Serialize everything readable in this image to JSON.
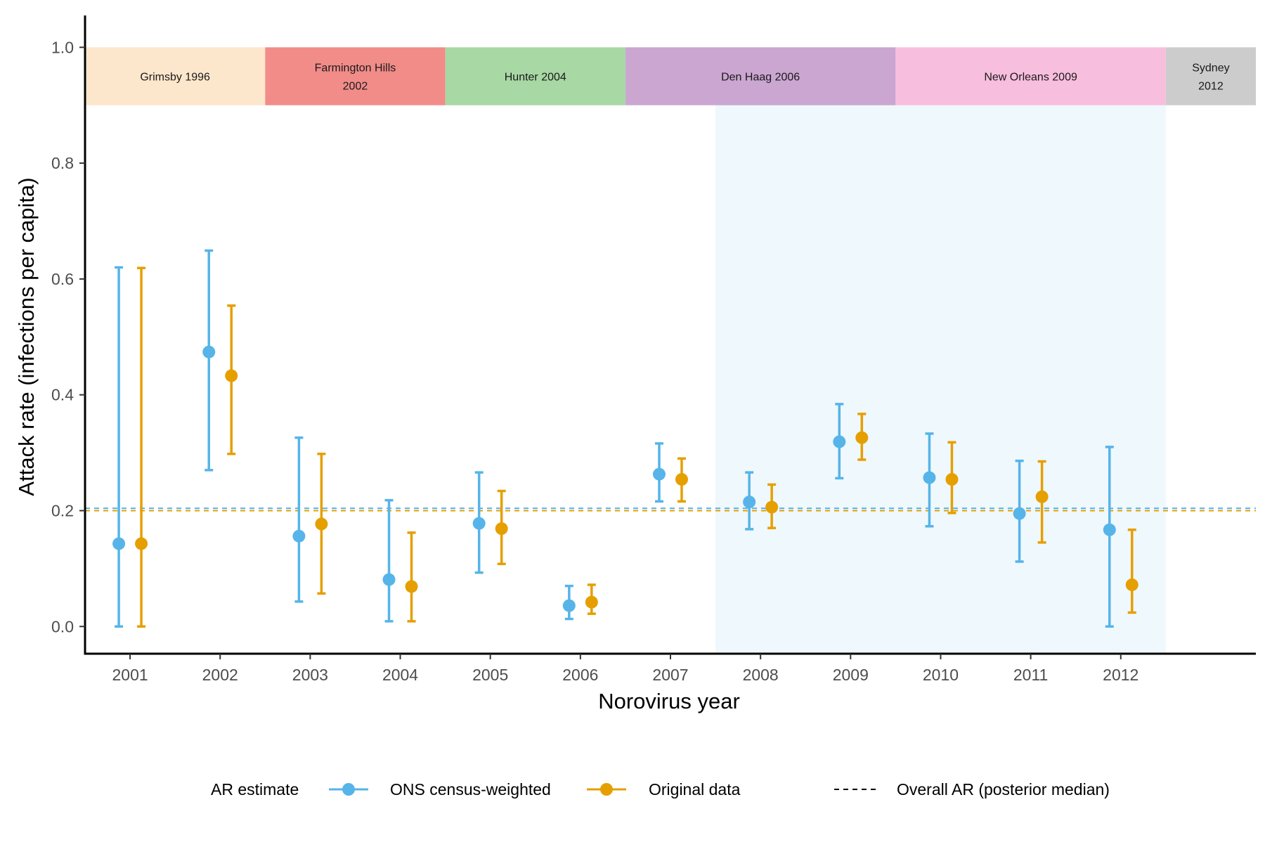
{
  "chart_data": {
    "type": "scatter",
    "xlabel": "Norovirus year",
    "ylabel": "Attack rate (infections per capita)",
    "ylim": [
      -0.047,
      1.055
    ],
    "yticks": [
      "0.0",
      "0.2",
      "0.4",
      "0.6",
      "0.8",
      "1.0"
    ],
    "x_categories": [
      "2001",
      "2002",
      "2003",
      "2004",
      "2005",
      "2006",
      "2007",
      "2008",
      "2009",
      "2010",
      "2011",
      "2012"
    ],
    "series": [
      {
        "name": "ONS census-weighted",
        "color": "#56B4E9",
        "points": [
          {
            "x": "2001",
            "y": 0.143,
            "lo": 0.0,
            "hi": 0.62
          },
          {
            "x": "2002",
            "y": 0.474,
            "lo": 0.27,
            "hi": 0.649
          },
          {
            "x": "2003",
            "y": 0.156,
            "lo": 0.043,
            "hi": 0.326
          },
          {
            "x": "2004",
            "y": 0.081,
            "lo": 0.009,
            "hi": 0.218
          },
          {
            "x": "2005",
            "y": 0.178,
            "lo": 0.093,
            "hi": 0.266
          },
          {
            "x": "2006",
            "y": 0.036,
            "lo": 0.013,
            "hi": 0.07
          },
          {
            "x": "2007",
            "y": 0.263,
            "lo": 0.216,
            "hi": 0.316
          },
          {
            "x": "2008",
            "y": 0.215,
            "lo": 0.168,
            "hi": 0.266
          },
          {
            "x": "2009",
            "y": 0.319,
            "lo": 0.256,
            "hi": 0.384
          },
          {
            "x": "2010",
            "y": 0.257,
            "lo": 0.173,
            "hi": 0.333
          },
          {
            "x": "2011",
            "y": 0.195,
            "lo": 0.112,
            "hi": 0.286
          },
          {
            "x": "2012",
            "y": 0.167,
            "lo": 0.0,
            "hi": 0.31
          }
        ]
      },
      {
        "name": "Original data",
        "color": "#E69F00",
        "points": [
          {
            "x": "2001",
            "y": 0.143,
            "lo": 0.0,
            "hi": 0.619
          },
          {
            "x": "2002",
            "y": 0.433,
            "lo": 0.298,
            "hi": 0.554
          },
          {
            "x": "2003",
            "y": 0.177,
            "lo": 0.057,
            "hi": 0.298
          },
          {
            "x": "2004",
            "y": 0.069,
            "lo": 0.009,
            "hi": 0.162
          },
          {
            "x": "2005",
            "y": 0.169,
            "lo": 0.108,
            "hi": 0.234
          },
          {
            "x": "2006",
            "y": 0.042,
            "lo": 0.022,
            "hi": 0.072
          },
          {
            "x": "2007",
            "y": 0.254,
            "lo": 0.216,
            "hi": 0.29
          },
          {
            "x": "2008",
            "y": 0.206,
            "lo": 0.17,
            "hi": 0.245
          },
          {
            "x": "2009",
            "y": 0.326,
            "lo": 0.288,
            "hi": 0.367
          },
          {
            "x": "2010",
            "y": 0.254,
            "lo": 0.196,
            "hi": 0.318
          },
          {
            "x": "2011",
            "y": 0.224,
            "lo": 0.145,
            "hi": 0.285
          },
          {
            "x": "2012",
            "y": 0.072,
            "lo": 0.024,
            "hi": 0.167
          }
        ]
      }
    ],
    "overall_ar": [
      {
        "series": "ONS census-weighted",
        "value": 0.204,
        "color": "#56B4E9"
      },
      {
        "series": "Original data",
        "value": 0.2,
        "color": "#E69F00"
      }
    ],
    "strain_bands": [
      {
        "line1": "Grimsby 1996",
        "line2": "",
        "from": 2000.0,
        "to": 2002.0,
        "color": "#FDE7CC"
      },
      {
        "line1": "Farmington Hills",
        "line2": "2002",
        "from": 2002.0,
        "to": 2004.0,
        "color": "#F18C89"
      },
      {
        "line1": "Hunter 2004",
        "line2": "",
        "from": 2004.0,
        "to": 2006.0,
        "color": "#A8D8A4"
      },
      {
        "line1": "Den Haag 2006",
        "line2": "",
        "from": 2006.0,
        "to": 2009.0,
        "color": "#CAA6D1"
      },
      {
        "line1": "New Orleans 2009",
        "line2": "",
        "from": 2009.0,
        "to": 2012.0,
        "color": "#F8BEDE"
      },
      {
        "line1": "Sydney",
        "line2": "2012",
        "from": 2012.0,
        "to": 2013.0,
        "color": "#CCCCCC"
      }
    ],
    "band_ylim": [
      0.9,
      1.0
    ],
    "highlight_region": {
      "from": 2007.0,
      "to": 2012.0,
      "color": "#EFF8FC"
    },
    "xlim": [
      2000.0,
      2013.0
    ],
    "grid": false,
    "legend": {
      "position": "bottom",
      "title": "AR estimate",
      "overall_label": "Overall AR (posterior median)"
    }
  }
}
